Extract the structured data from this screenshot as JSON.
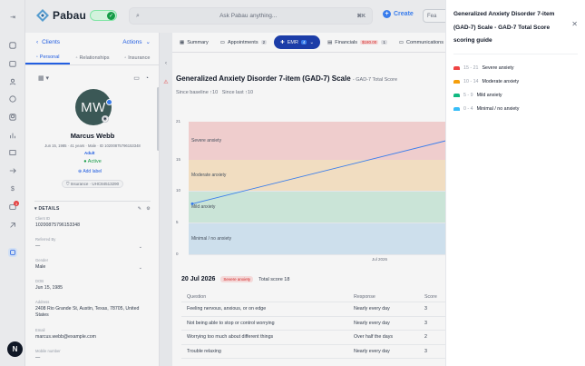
{
  "app": {
    "brand": "Pabau",
    "search_placeholder": "Ask Pabau anything...",
    "search_shortcut": "⌘K",
    "create_label": "Create",
    "feature_label": "Fea"
  },
  "rail": {
    "notification_count": "3",
    "fab_label": "N"
  },
  "client": {
    "back_label": "Clients",
    "actions_label": "Actions",
    "tabs": [
      "Personal",
      "Relationships",
      "Insurance"
    ],
    "initials": "MW",
    "name": "Marcus Webb",
    "meta": "Jun 15, 1985 · 41 years · Male · ID 10200875796153348",
    "tag": "Adult",
    "status": "Active",
    "add_label": "Add label",
    "insurance": "Insurance · UHC84513290",
    "details_heading": "DETAILS",
    "fields": [
      {
        "label": "Client ID",
        "value": "10200875796153348"
      },
      {
        "label": "Referred By",
        "value": "—"
      },
      {
        "label": "Gender",
        "value": "Male"
      },
      {
        "label": "DOB",
        "value": "Jun 15, 1985"
      },
      {
        "label": "Address",
        "value": "2408 Rio Grande St, Austin, Texas, 78705, United States"
      },
      {
        "label": "Email",
        "value": "marcus.webb@example.com"
      },
      {
        "label": "Mobile number",
        "value": "—"
      }
    ]
  },
  "main": {
    "tabs": [
      {
        "label": "Summary",
        "count": ""
      },
      {
        "label": "Appointments",
        "count": "2"
      },
      {
        "label": "EMR",
        "count": "4"
      },
      {
        "label": "Financials",
        "count": "1",
        "amount": "$180.00"
      },
      {
        "label": "Communications",
        "count": "8"
      }
    ],
    "scale_title": "Generalized Anxiety Disorder 7-item (GAD-7) Scale",
    "scale_subtitle": "- GAD-7 Total Score",
    "since_baseline": "Since baseline ↑10",
    "since_last": "Since last ↑10",
    "summary_date": "20 Jul 2026",
    "summary_severity": "Severe anxiety",
    "summary_total": "Total score 18",
    "table": {
      "headers": [
        "Question",
        "Response",
        "Score"
      ],
      "rows": [
        [
          "Feeling nervous, anxious, or on edge",
          "Nearly every day",
          "3"
        ],
        [
          "Not being able to stop or control worrying",
          "Nearly every day",
          "3"
        ],
        [
          "Worrying too much about different things",
          "Over half the days",
          "2"
        ],
        [
          "Trouble relaxing",
          "Nearly every day",
          "3"
        ]
      ]
    }
  },
  "chart_data": {
    "type": "line",
    "x_tick_labels": [
      "Jul 2026"
    ],
    "y_ticks": [
      21,
      15,
      10,
      5,
      0
    ],
    "ylim": [
      0,
      21
    ],
    "bands": [
      {
        "label": "Severe anxiety",
        "from": 15,
        "to": 21,
        "color": "#f9d6d6"
      },
      {
        "label": "Moderate anxiety",
        "from": 10,
        "to": 14,
        "color": "#fbe7c9"
      },
      {
        "label": "Mild anxiety",
        "from": 5,
        "to": 9,
        "color": "#d3eee0"
      },
      {
        "label": "Minimal / no anxiety",
        "from": 0,
        "to": 4,
        "color": "#d6e9f6"
      }
    ],
    "series": [
      {
        "values": [
          8,
          18
        ]
      }
    ],
    "line_color": "#3b82f6"
  },
  "guide": {
    "title": "Generalized Anxiety Disorder 7-item (GAD-7) Scale - GAD-7 Total Score scoring guide",
    "items": [
      {
        "range": "15 - 21",
        "label": "Severe anxiety",
        "color": "#ef4444"
      },
      {
        "range": "10 - 14",
        "label": "Moderate anxiety",
        "color": "#f59e0b"
      },
      {
        "range": "5 - 9",
        "label": "Mild anxiety",
        "color": "#10b981"
      },
      {
        "range": "0 - 4",
        "label": "Minimal / no anxiety",
        "color": "#38bdf8"
      }
    ]
  }
}
